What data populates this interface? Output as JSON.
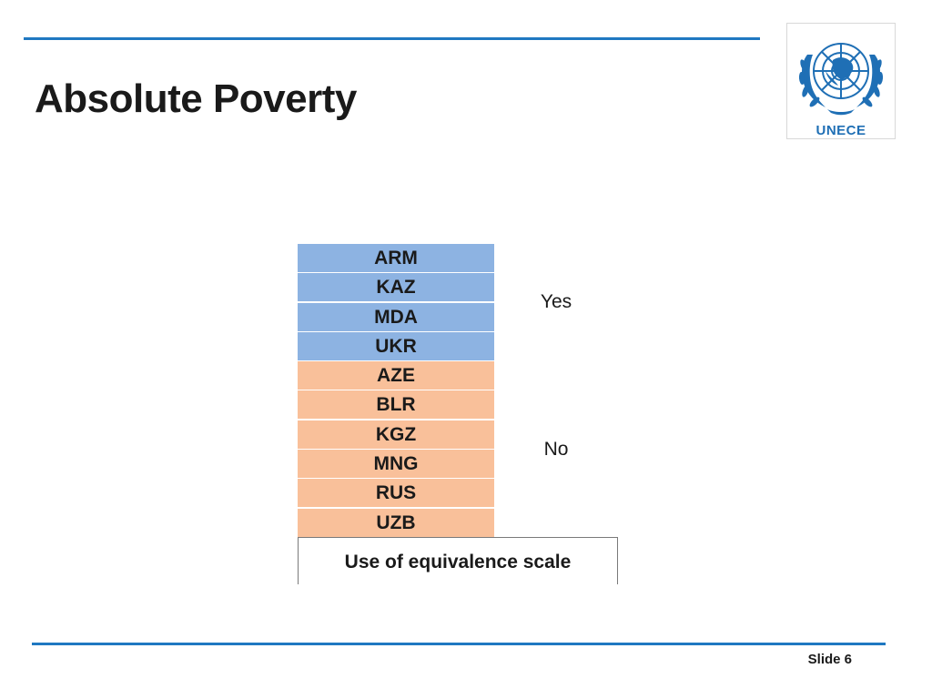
{
  "slide": {
    "title": "Absolute Poverty",
    "logo_text": "UNECE",
    "slide_number": "Slide 6"
  },
  "table": {
    "yes_label": "Yes",
    "no_label": "No",
    "caption": "Use of equivalence scale",
    "yes_countries": [
      "ARM",
      "KAZ",
      "MDA",
      "UKR"
    ],
    "no_countries": [
      "AZE",
      "BLR",
      "KGZ",
      "MNG",
      "RUS",
      "UZB"
    ]
  },
  "colors": {
    "accent_rule": "#1f78c1",
    "yes_fill": "#8db3e2",
    "no_fill": "#f9c09a",
    "logo_blue": "#1f6fb5"
  },
  "icons": {
    "logo": "un-emblem-icon"
  }
}
